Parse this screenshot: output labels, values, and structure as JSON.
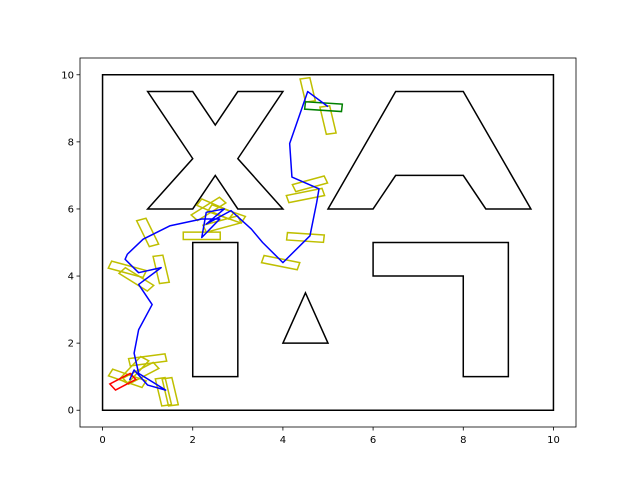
{
  "chart_data": {
    "type": "line",
    "title": "",
    "xlabel": "",
    "ylabel": "",
    "xlim": [
      -0.5,
      10.5
    ],
    "ylim": [
      -0.5,
      10.5
    ],
    "x_ticks": [
      0,
      2,
      4,
      6,
      8,
      10
    ],
    "y_ticks": [
      0,
      2,
      4,
      6,
      8,
      10
    ],
    "x_tick_labels": [
      "0",
      "2",
      "4",
      "6",
      "8",
      "10"
    ],
    "y_tick_labels": [
      "0",
      "2",
      "4",
      "6",
      "8",
      "10"
    ],
    "grid": false,
    "legend": "none",
    "colors": {
      "obstacle": "#000000",
      "path": "#0000ff",
      "footprint": "#bfbf00",
      "start": "#ff0000",
      "goal": "#008000"
    },
    "obstacles": [
      {
        "name": "boundary",
        "points": [
          [
            0,
            0
          ],
          [
            10,
            0
          ],
          [
            10,
            10
          ],
          [
            0,
            10
          ]
        ]
      },
      {
        "name": "x-shape",
        "points": [
          [
            1,
            9.5
          ],
          [
            2,
            9.5
          ],
          [
            2.5,
            8.5
          ],
          [
            3,
            9.5
          ],
          [
            4,
            9.5
          ],
          [
            3,
            7.5
          ],
          [
            4,
            6
          ],
          [
            3,
            6
          ],
          [
            2.5,
            7
          ],
          [
            2,
            6
          ],
          [
            1,
            6
          ],
          [
            2,
            7.5
          ]
        ]
      },
      {
        "name": "a-shape",
        "points": [
          [
            5,
            6
          ],
          [
            6.5,
            9.5
          ],
          [
            8,
            9.5
          ],
          [
            9.5,
            6
          ],
          [
            8.5,
            6
          ],
          [
            8,
            7
          ],
          [
            6.5,
            7
          ],
          [
            6,
            6
          ]
        ]
      },
      {
        "name": "vertical-bar",
        "points": [
          [
            2,
            1
          ],
          [
            3,
            1
          ],
          [
            3,
            5
          ],
          [
            2,
            5
          ]
        ]
      },
      {
        "name": "l-shape",
        "points": [
          [
            6,
            5
          ],
          [
            9,
            5
          ],
          [
            9,
            1
          ],
          [
            8,
            1
          ],
          [
            8,
            4
          ],
          [
            6,
            4
          ]
        ]
      },
      {
        "name": "triangle",
        "points": [
          [
            4,
            2
          ],
          [
            5,
            2
          ],
          [
            4.5,
            3.5
          ]
        ]
      }
    ],
    "path": [
      [
        0.6,
        0.9
      ],
      [
        0.7,
        1.2
      ],
      [
        1.0,
        0.75
      ],
      [
        1.4,
        0.6
      ],
      [
        0.8,
        1.1
      ],
      [
        0.7,
        1.7
      ],
      [
        0.8,
        2.4
      ],
      [
        1.1,
        3.15
      ],
      [
        0.8,
        3.75
      ],
      [
        1.3,
        4.25
      ],
      [
        0.8,
        4.1
      ],
      [
        0.5,
        4.5
      ],
      [
        0.55,
        4.65
      ],
      [
        0.9,
        5.1
      ],
      [
        1.5,
        5.5
      ],
      [
        2.2,
        5.7
      ],
      [
        2.6,
        5.7
      ],
      [
        2.2,
        5.15
      ],
      [
        2.3,
        5.9
      ],
      [
        2.7,
        6.0
      ],
      [
        2.3,
        5.55
      ],
      [
        2.85,
        5.95
      ],
      [
        3.3,
        5.4
      ],
      [
        3.55,
        5.0
      ],
      [
        4.0,
        4.4
      ],
      [
        4.6,
        5.2
      ],
      [
        4.75,
        6.2
      ],
      [
        4.8,
        6.6
      ],
      [
        4.2,
        6.95
      ],
      [
        4.15,
        7.95
      ],
      [
        4.55,
        9.5
      ],
      [
        5.0,
        9.05
      ]
    ],
    "footprints": [
      [
        4.55,
        9.55,
        0.22,
        0.7,
        -80
      ],
      [
        5.0,
        8.65,
        0.22,
        0.82,
        -80
      ],
      [
        4.6,
        6.75,
        0.22,
        0.75,
        20
      ],
      [
        4.5,
        6.4,
        0.22,
        0.82,
        15
      ],
      [
        4.5,
        5.15,
        0.22,
        0.82,
        -5
      ],
      [
        3.95,
        4.4,
        0.22,
        0.82,
        -15
      ],
      [
        2.75,
        5.85,
        0.22,
        0.82,
        -25
      ],
      [
        2.65,
        5.55,
        0.22,
        0.82,
        20
      ],
      [
        2.5,
        6.0,
        0.22,
        0.82,
        -30
      ],
      [
        2.35,
        6.0,
        0.22,
        0.82,
        40
      ],
      [
        2.2,
        5.2,
        0.22,
        0.82,
        0
      ],
      [
        1.0,
        5.3,
        0.22,
        0.82,
        -70
      ],
      [
        1.3,
        4.2,
        0.22,
        0.82,
        -80
      ],
      [
        0.55,
        4.2,
        0.22,
        0.82,
        -20
      ],
      [
        0.75,
        3.9,
        0.22,
        0.82,
        -40
      ],
      [
        1.0,
        1.5,
        0.22,
        0.82,
        10
      ],
      [
        0.85,
        1.1,
        0.22,
        0.82,
        35
      ],
      [
        1.35,
        0.55,
        0.22,
        0.82,
        -80
      ],
      [
        1.5,
        0.55,
        0.22,
        0.82,
        -80
      ],
      [
        0.7,
        1.2,
        0.22,
        0.82,
        55
      ],
      [
        0.55,
        0.95,
        0.22,
        0.82,
        -25
      ]
    ],
    "start_footprint": [
      0.45,
      0.85,
      0.22,
      0.55,
      35
    ],
    "goal_footprint": [
      4.9,
      9.05,
      0.22,
      0.82,
      -5
    ]
  }
}
